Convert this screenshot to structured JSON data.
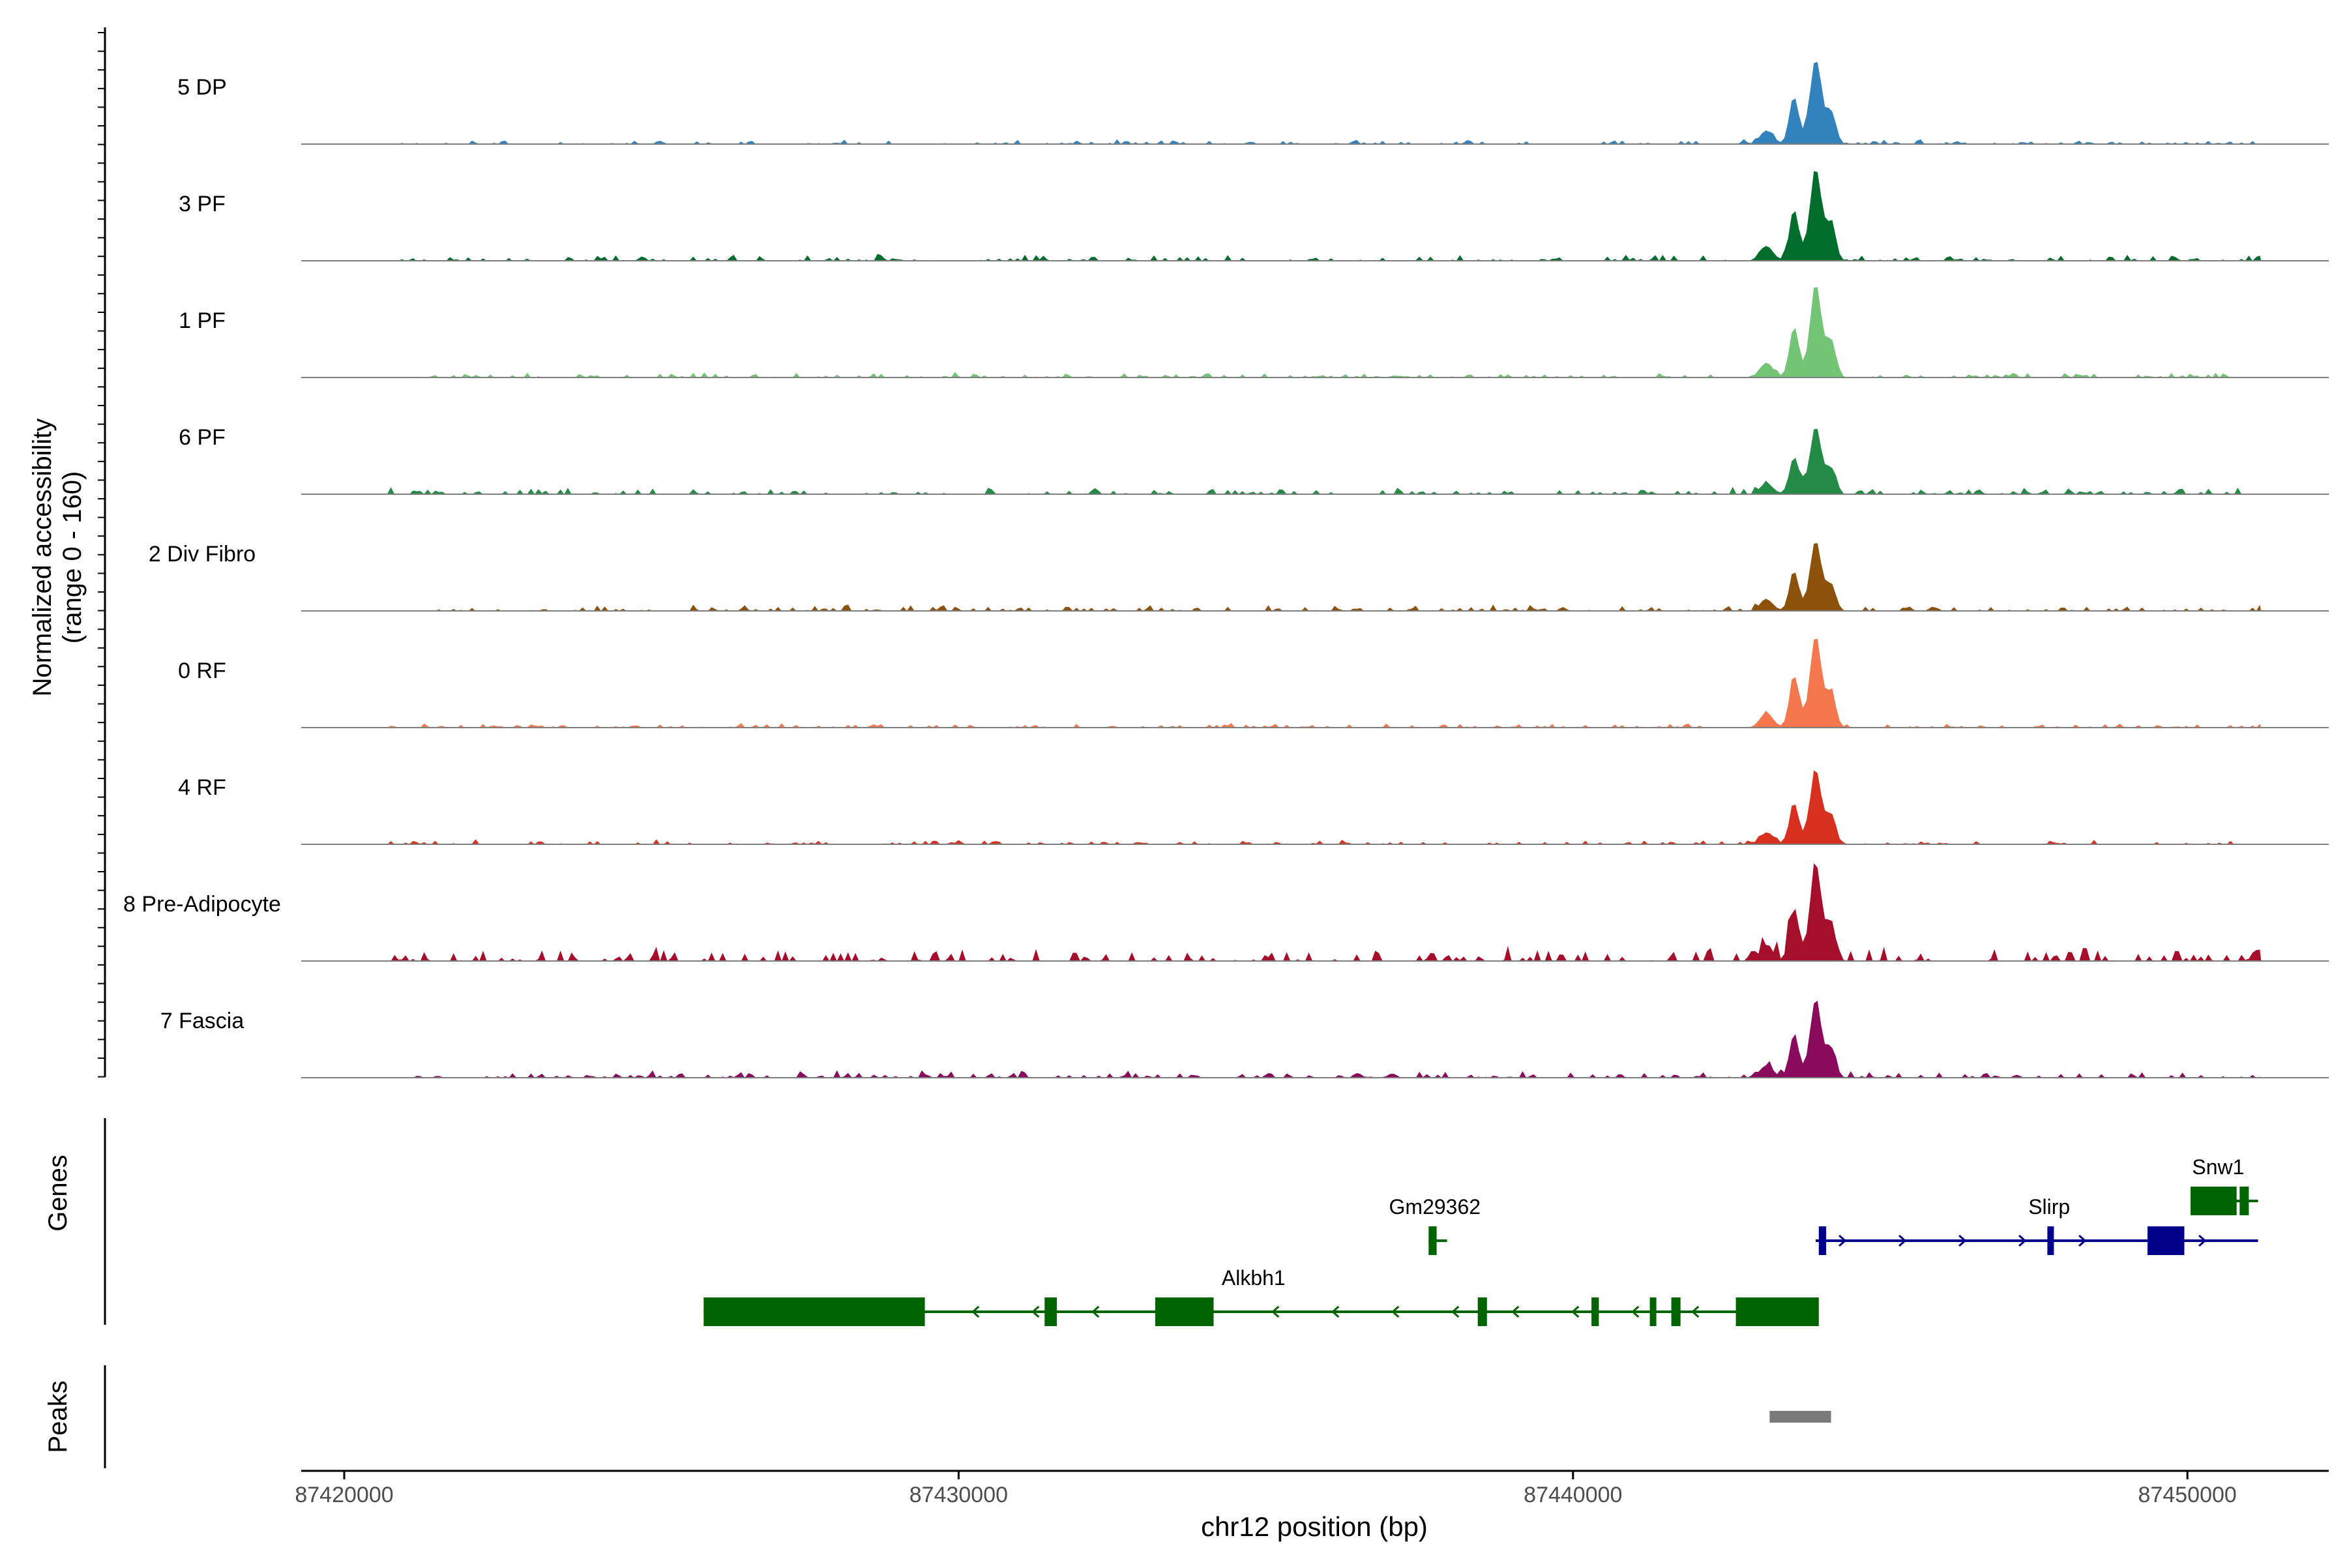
{
  "chart_data": {
    "type": "area",
    "title": "",
    "xlabel": "chr12 position (bp)",
    "ylabel_line1": "Normalized accessibility",
    "ylabel_line2": "(range 0 - 160)",
    "xlim": [
      87419300,
      87452300
    ],
    "ylim": [
      0,
      160
    ],
    "x_ticks": [
      87420000,
      87430000,
      87440000,
      87450000
    ],
    "x_tick_labels": [
      "87420000",
      "87430000",
      "87440000",
      "87450000"
    ],
    "tracks": [
      {
        "name": "5 DP",
        "color": "#3182bd",
        "peak": 140,
        "noise": 6,
        "seed": 11
      },
      {
        "name": "3 PF",
        "color": "#006d2c",
        "peak": 152,
        "noise": 9,
        "seed": 23
      },
      {
        "name": "1 PF",
        "color": "#74c476",
        "peak": 152,
        "noise": 7,
        "seed": 37
      },
      {
        "name": "6 PF",
        "color": "#238b45",
        "peak": 112,
        "noise": 9,
        "seed": 41
      },
      {
        "name": "2 Div Fibro",
        "color": "#8c510a",
        "peak": 116,
        "noise": 9,
        "seed": 53
      },
      {
        "name": "0 RF",
        "color": "#f4774d",
        "peak": 152,
        "noise": 6,
        "seed": 61
      },
      {
        "name": "4 RF",
        "color": "#d7301f",
        "peak": 122,
        "noise": 6,
        "seed": 73
      },
      {
        "name": "8 Pre-Adipocyte",
        "color": "#a50f2b",
        "peak": 160,
        "noise": 20,
        "seed": 89
      },
      {
        "name": "7 Fascia",
        "color": "#8a0a5c",
        "peak": 128,
        "noise": 9,
        "seed": 97
      }
    ],
    "peak_profile": [
      {
        "center": 87443150,
        "width": 150,
        "height": 0.16
      },
      {
        "center": 87443600,
        "width": 110,
        "height": 0.55
      },
      {
        "center": 87443950,
        "width": 130,
        "height": 1.0
      },
      {
        "center": 87444200,
        "width": 110,
        "height": 0.38
      }
    ],
    "genes_label": "Genes",
    "genes": [
      {
        "name": "Alkbh1",
        "strand": "-",
        "color": "#006400",
        "start": 87425850,
        "end": 87444000,
        "row": 2,
        "label_x": 87434800,
        "exons": [
          [
            87425850,
            87429450
          ],
          [
            87431400,
            87431600
          ],
          [
            87433200,
            87434150
          ],
          [
            87438450,
            87438600
          ],
          [
            87440300,
            87440420
          ],
          [
            87441250,
            87441350
          ],
          [
            87441600,
            87441750
          ],
          [
            87442650,
            87444000
          ]
        ]
      },
      {
        "name": "Gm29362",
        "strand": "-",
        "color": "#006400",
        "start": 87437650,
        "end": 87437950,
        "row": 1,
        "label_x": 87437750,
        "exons": [
          [
            87437650,
            87437780
          ]
        ]
      },
      {
        "name": "Slirp",
        "strand": "+",
        "color": "#00008b",
        "start": 87443950,
        "end": 87451150,
        "row": 1,
        "label_x": 87447750,
        "exons": [
          [
            87444000,
            87444120
          ],
          [
            87447720,
            87447770
          ],
          [
            87449350,
            87449950
          ]
        ]
      },
      {
        "name": "Snw1",
        "strand": "-",
        "color": "#006400",
        "start": 87450050,
        "end": 87451150,
        "row": 0,
        "label_x": 87450500,
        "exons": [
          [
            87450050,
            87450800
          ],
          [
            87450850,
            87451000
          ]
        ]
      }
    ],
    "peaks_label": "Peaks",
    "peak_regions": [
      [
        87443200,
        87444200
      ]
    ],
    "peak_color": "#7a7a7a"
  }
}
